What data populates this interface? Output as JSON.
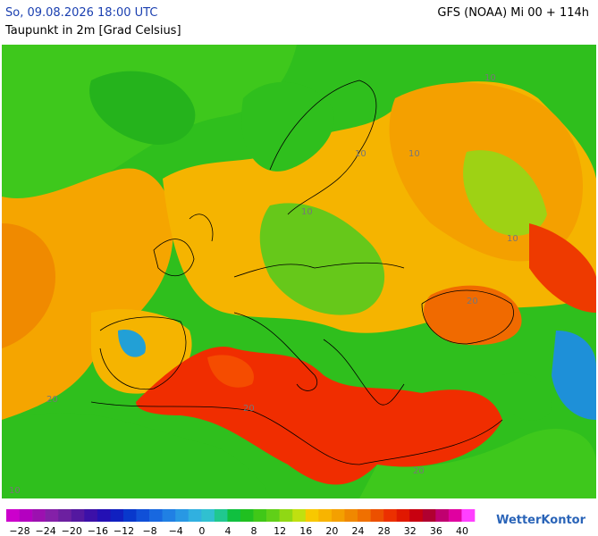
{
  "header": {
    "time": "So, 09.08.2026 18:00 UTC",
    "parameter": "Taupunkt in 2m [Grad Celsius]",
    "model": "GFS (NOAA) Mi 00 + 114h"
  },
  "contour_labels": [
    "10",
    "10",
    "10",
    "10",
    "10",
    "20",
    "20",
    "20",
    "20",
    "10"
  ],
  "legend": {
    "colors": [
      "#cc00cc",
      "#b400c0",
      "#9c10b0",
      "#8420a8",
      "#6c20a0",
      "#5418a0",
      "#3c10a8",
      "#2410b4",
      "#1020c0",
      "#0838cc",
      "#1050d8",
      "#1868e0",
      "#2080e4",
      "#2898e4",
      "#30b0e0",
      "#30c0d0",
      "#20c890",
      "#10c040",
      "#20c020",
      "#40c818",
      "#60d018",
      "#90d814",
      "#c0e010",
      "#f8c800",
      "#f8b400",
      "#f4a000",
      "#f08800",
      "#f07000",
      "#ec5000",
      "#ec3000",
      "#e01800",
      "#c80010",
      "#b00030",
      "#c00070",
      "#e000a0",
      "#ff40ff"
    ],
    "labels": [
      "−28",
      "−24",
      "−20",
      "−16",
      "−12",
      "−8",
      "−4",
      "0",
      "4",
      "8",
      "12",
      "16",
      "20",
      "24",
      "28",
      "32",
      "36",
      "40"
    ]
  },
  "footer": {
    "brand": "WetterKontor"
  }
}
